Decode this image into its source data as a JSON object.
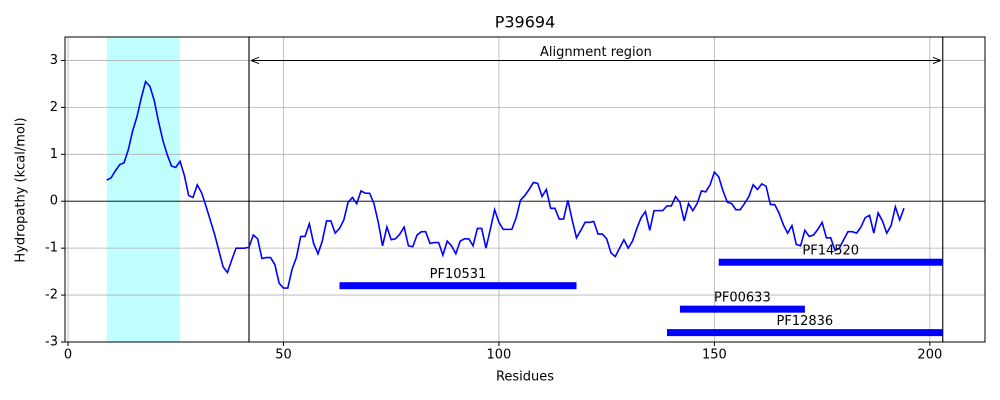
{
  "chart_data": {
    "type": "line",
    "title": "P39694",
    "xlabel": "Residues",
    "ylabel": "Hydropathy (kcal/mol)",
    "color": "#0000ff",
    "x": [
      9,
      10,
      11,
      12,
      13,
      14,
      15,
      16,
      17,
      18,
      19,
      20,
      21,
      22,
      23,
      24,
      25,
      26,
      27,
      28,
      29,
      30,
      31,
      32,
      33,
      34,
      35,
      36,
      37,
      38,
      39,
      40,
      41,
      42,
      43,
      44,
      45,
      46,
      47,
      48,
      49,
      50,
      51,
      52,
      53,
      54,
      55,
      56,
      57,
      58,
      59,
      60,
      61,
      62,
      63,
      64,
      65,
      66,
      67,
      68,
      69,
      70,
      71,
      72,
      73,
      74,
      75,
      76,
      77,
      78,
      79,
      80,
      81,
      82,
      83,
      84,
      85,
      86,
      87,
      88,
      89,
      90,
      91,
      92,
      93,
      94,
      95,
      96,
      97,
      98,
      99,
      100,
      101,
      102,
      103,
      104,
      105,
      106,
      107,
      108,
      109,
      110,
      111,
      112,
      113,
      114,
      115,
      116,
      117,
      118,
      119,
      120,
      121,
      122,
      123,
      124,
      125,
      126,
      127,
      128,
      129,
      130,
      131,
      132,
      133,
      134,
      135,
      136,
      137,
      138,
      139,
      140,
      141,
      142,
      143,
      144,
      145,
      146,
      147,
      148,
      149,
      150,
      151,
      152,
      153,
      154,
      155,
      156,
      157,
      158,
      159,
      160,
      161,
      162,
      163,
      164,
      165,
      166,
      167,
      168,
      169,
      170,
      171,
      172,
      173,
      174,
      175,
      176,
      177,
      178,
      179,
      180,
      181,
      182,
      183,
      184,
      185,
      186,
      187,
      188,
      189,
      190,
      191,
      192,
      193,
      194
    ],
    "values": [
      0.45,
      0.5,
      0.65,
      0.78,
      0.82,
      1.1,
      1.5,
      1.8,
      2.2,
      2.55,
      2.45,
      2.15,
      1.7,
      1.3,
      1.0,
      0.75,
      0.72,
      0.85,
      0.55,
      0.12,
      0.08,
      0.35,
      0.18,
      -0.1,
      -0.4,
      -0.7,
      -1.05,
      -1.4,
      -1.52,
      -1.25,
      -1.0,
      -1.0,
      -1.0,
      -0.98,
      -0.72,
      -0.8,
      -1.22,
      -1.2,
      -1.2,
      -1.35,
      -1.75,
      -1.85,
      -1.85,
      -1.45,
      -1.2,
      -0.75,
      -0.75,
      -0.48,
      -0.9,
      -1.12,
      -0.85,
      -0.42,
      -0.42,
      -0.68,
      -0.58,
      -0.4,
      -0.02,
      0.08,
      -0.05,
      0.22,
      0.17,
      0.17,
      -0.05,
      -0.45,
      -0.95,
      -0.55,
      -0.82,
      -0.8,
      -0.7,
      -0.55,
      -0.95,
      -0.97,
      -0.72,
      -0.65,
      -0.65,
      -0.9,
      -0.88,
      -0.88,
      -1.15,
      -0.85,
      -0.95,
      -1.12,
      -0.85,
      -0.8,
      -0.8,
      -0.95,
      -0.58,
      -0.58,
      -1.0,
      -0.6,
      -0.18,
      -0.45,
      -0.6,
      -0.6,
      -0.6,
      -0.35,
      0.02,
      0.12,
      0.25,
      0.4,
      0.38,
      0.1,
      0.25,
      -0.15,
      -0.15,
      -0.38,
      -0.38,
      0.02,
      -0.4,
      -0.78,
      -0.62,
      -0.45,
      -0.45,
      -0.43,
      -0.7,
      -0.7,
      -0.8,
      -1.1,
      -1.18,
      -1.0,
      -0.82,
      -1.0,
      -0.85,
      -0.58,
      -0.35,
      -0.22,
      -0.62,
      -0.2,
      -0.2,
      -0.2,
      -0.1,
      -0.1,
      0.1,
      -0.02,
      -0.42,
      -0.05,
      -0.2,
      -0.05,
      0.22,
      0.2,
      0.35,
      0.62,
      0.52,
      0.22,
      -0.02,
      -0.05,
      -0.18,
      -0.18,
      -0.05,
      0.1,
      0.35,
      0.25,
      0.37,
      0.32,
      -0.07,
      -0.07,
      -0.25,
      -0.5,
      -0.68,
      -0.52,
      -0.92,
      -0.95,
      -0.62,
      -0.75,
      -0.72,
      -0.6,
      -0.45,
      -0.78,
      -0.78,
      -1.05,
      -1.0,
      -0.82,
      -0.65,
      -0.65,
      -0.68,
      -0.55,
      -0.35,
      -0.3,
      -0.68,
      -0.25,
      -0.42,
      -0.68,
      -0.52,
      -0.12,
      -0.4,
      -0.15
    ],
    "xlim": [
      -0.7,
      212.8
    ],
    "ylim": [
      -3,
      3.5
    ],
    "xticks": [
      0,
      50,
      100,
      150,
      200
    ],
    "yticks": [
      -3,
      -2,
      -1,
      0,
      1,
      2,
      3
    ],
    "grid": true,
    "shaded_region": {
      "start": 9,
      "end": 26,
      "color": "#c0ffff"
    },
    "hline": 0,
    "vlines": [
      42,
      203
    ],
    "annotation": {
      "text": "Alignment region",
      "start": 42,
      "end": 203,
      "y": 3
    },
    "domains": [
      {
        "label": "PF10531",
        "start": 63,
        "end": 118,
        "y": -1.8,
        "color": "#0000ff"
      },
      {
        "label": "PF14520",
        "start": 151,
        "end": 203,
        "y": -1.3,
        "color": "#0000ff"
      },
      {
        "label": "PF00633",
        "start": 142,
        "end": 171,
        "y": -2.3,
        "color": "#0000ff"
      },
      {
        "label": "PF12836",
        "start": 139,
        "end": 203,
        "y": -2.8,
        "color": "#0000ff"
      }
    ]
  }
}
